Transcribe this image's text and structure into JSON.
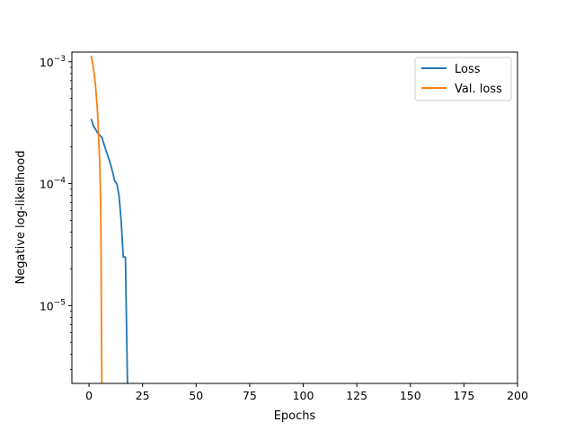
{
  "chart_data": {
    "type": "line",
    "xlabel": "Epochs",
    "ylabel": "Negative log-likelihood",
    "xlim": [
      -8,
      200
    ],
    "ylim": [
      2.3e-06,
      0.0012
    ],
    "yscale": "log",
    "grid": false,
    "legend_position": "top-right",
    "x_ticks": [
      0,
      25,
      50,
      75,
      100,
      125,
      150,
      175,
      200
    ],
    "x_tick_labels": [
      "0",
      "25",
      "50",
      "75",
      "100",
      "125",
      "150",
      "175",
      "200"
    ],
    "y_ticks": [
      1e-05,
      0.0001,
      0.001
    ],
    "y_tick_labels": [
      {
        "base": "10",
        "exp": "−5"
      },
      {
        "base": "10",
        "exp": "−4"
      },
      {
        "base": "10",
        "exp": "−3"
      }
    ],
    "series": [
      {
        "name": "Loss",
        "color": "#1f77b4",
        "x": [
          1,
          2,
          3,
          4,
          5,
          6,
          7,
          8,
          9,
          10,
          11,
          12,
          13,
          14,
          15,
          16,
          17,
          18
        ],
        "y": [
          0.00034,
          0.0003,
          0.00028,
          0.00026,
          0.00025,
          0.00024,
          0.00021,
          0.000185,
          0.000165,
          0.000145,
          0.000125,
          0.000105,
          0.0001,
          8e-05,
          5e-05,
          2.5e-05,
          2.5e-05,
          2e-06
        ]
      },
      {
        "name": "Val. loss",
        "color": "#ff7f0e",
        "x": [
          1,
          2,
          3,
          4,
          5,
          5.5,
          6
        ],
        "y": [
          0.00112,
          0.0009,
          0.00065,
          0.00038,
          0.00015,
          6e-05,
          2e-06
        ]
      }
    ]
  }
}
